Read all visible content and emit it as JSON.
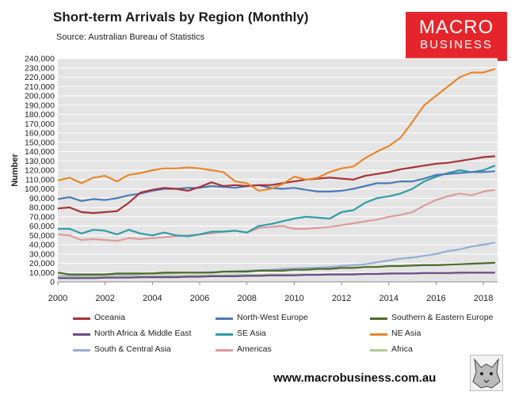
{
  "header": {
    "title": "Short-term Arrivals by Region (Monthly)",
    "subtitle": "Source: Australian Bureau of Statistics"
  },
  "logo": {
    "line1": "MACRO",
    "line2": "BUSINESS"
  },
  "footer": {
    "website": "www.macrobusiness.com.au"
  },
  "colors": {
    "plot_bg": "#e4e4e4",
    "Oceania": "#a83235",
    "North-West Europe": "#4a7ab5",
    "Southern & Eastern Europe": "#4e6b2a",
    "North Africa & Middle East": "#6a4a8a",
    "SE Asia": "#2f9ca8",
    "NE Asia": "#e8862c",
    "South & Central Asia": "#94aed6",
    "Americas": "#dc9c9c",
    "Africa": "#b4cc94"
  },
  "chart_data": {
    "type": "line",
    "title": "Short-term Arrivals by Region (Monthly)",
    "xlabel": "",
    "ylabel": "Number",
    "xlim": [
      2000,
      2018.6
    ],
    "ylim": [
      0,
      240000
    ],
    "yticks": [
      "0",
      "10,000",
      "20,000",
      "30,000",
      "40,000",
      "50,000",
      "60,000",
      "70,000",
      "80,000",
      "90,000",
      "100,000",
      "110,000",
      "120,000",
      "130,000",
      "140,000",
      "150,000",
      "160,000",
      "170,000",
      "180,000",
      "190,000",
      "200,000",
      "210,000",
      "220,000",
      "230,000",
      "240,000"
    ],
    "xticks": [
      "2000",
      "2002",
      "2004",
      "2006",
      "2008",
      "2010",
      "2012",
      "2014",
      "2016",
      "2018"
    ],
    "x": [
      2000,
      2000.5,
      2001,
      2001.5,
      2002,
      2002.5,
      2003,
      2003.5,
      2004,
      2004.5,
      2005,
      2005.5,
      2006,
      2006.5,
      2007,
      2007.5,
      2008,
      2008.5,
      2009,
      2009.5,
      2010,
      2010.5,
      2011,
      2011.5,
      2012,
      2012.5,
      2013,
      2013.5,
      2014,
      2014.5,
      2015,
      2015.5,
      2016,
      2016.5,
      2017,
      2017.5,
      2018,
      2018.5
    ],
    "series": [
      {
        "name": "Oceania",
        "values": [
          79000,
          80000,
          75000,
          74000,
          75000,
          76000,
          85000,
          96000,
          99000,
          101000,
          100000,
          98000,
          102000,
          107000,
          103000,
          104000,
          103000,
          104000,
          104000,
          106000,
          108000,
          110000,
          111000,
          112000,
          111000,
          110000,
          114000,
          116000,
          118000,
          121000,
          123000,
          125000,
          127000,
          128000,
          130000,
          132000,
          134000,
          135000
        ]
      },
      {
        "name": "North-West Europe",
        "values": [
          89000,
          91000,
          87000,
          89000,
          88000,
          90000,
          93000,
          95000,
          98000,
          100000,
          100000,
          101000,
          101000,
          103000,
          102000,
          101000,
          103000,
          104000,
          101000,
          100000,
          101000,
          99000,
          97000,
          97000,
          98000,
          100000,
          103000,
          106000,
          106000,
          108000,
          108000,
          111000,
          115000,
          116000,
          117000,
          118000,
          118000,
          119000
        ]
      },
      {
        "name": "Southern & Eastern Europe",
        "values": [
          10000,
          8000,
          8000,
          8000,
          8000,
          9000,
          9000,
          9000,
          9000,
          10000,
          10000,
          10000,
          10000,
          10000,
          11000,
          11000,
          11000,
          12000,
          12000,
          12000,
          13000,
          13000,
          14000,
          14000,
          15000,
          15000,
          16000,
          16000,
          17000,
          17000,
          17500,
          18000,
          18000,
          18500,
          19000,
          19500,
          20000,
          20500
        ]
      },
      {
        "name": "North Africa & Middle East",
        "values": [
          4000,
          4000,
          4000,
          4000,
          4500,
          4500,
          4500,
          5000,
          5000,
          5000,
          5000,
          5500,
          5500,
          6000,
          6000,
          6000,
          6500,
          6500,
          7000,
          7000,
          7000,
          7500,
          7500,
          8000,
          8000,
          8000,
          8500,
          8500,
          9000,
          9000,
          9000,
          9500,
          9500,
          9500,
          10000,
          10000,
          10000,
          10000
        ]
      },
      {
        "name": "SE Asia",
        "values": [
          57000,
          57000,
          52000,
          56000,
          55000,
          51000,
          56000,
          52000,
          50000,
          53000,
          50000,
          49000,
          51000,
          54000,
          54000,
          55000,
          53000,
          60000,
          62000,
          65000,
          68000,
          70000,
          69000,
          68000,
          75000,
          77000,
          85000,
          90000,
          92000,
          95000,
          100000,
          108000,
          113000,
          117000,
          120000,
          118000,
          120000,
          125000
        ]
      },
      {
        "name": "NE Asia",
        "values": [
          109000,
          112000,
          106000,
          112000,
          114000,
          108000,
          115000,
          117000,
          120000,
          122000,
          122000,
          123000,
          122000,
          120000,
          118000,
          108000,
          106000,
          98000,
          100000,
          105000,
          113000,
          110000,
          112000,
          118000,
          122000,
          124000,
          133000,
          140000,
          146000,
          155000,
          172000,
          190000,
          200000,
          210000,
          220000,
          225000,
          225000,
          229000
        ]
      },
      {
        "name": "South & Central Asia",
        "values": [
          6000,
          6500,
          7000,
          7000,
          7500,
          8000,
          8000,
          8500,
          9000,
          9000,
          9500,
          10000,
          10000,
          10500,
          11000,
          11500,
          12000,
          12500,
          13000,
          14000,
          14500,
          15000,
          15500,
          16000,
          17000,
          18000,
          19000,
          21000,
          23000,
          25000,
          26000,
          28000,
          30000,
          33000,
          35000,
          38000,
          40000,
          42000
        ]
      },
      {
        "name": "Americas",
        "values": [
          51000,
          50000,
          45000,
          46000,
          45000,
          44000,
          47000,
          46000,
          47000,
          48000,
          49000,
          50000,
          51000,
          52000,
          54000,
          55000,
          53000,
          58000,
          59000,
          60000,
          57000,
          57000,
          58000,
          59000,
          61000,
          63000,
          65000,
          67000,
          70000,
          72000,
          75000,
          82000,
          88000,
          92000,
          95000,
          93000,
          97000,
          99000
        ]
      },
      {
        "name": "Africa",
        "values": [
          5000,
          5000,
          5000,
          5500,
          5500,
          5500,
          6000,
          6000,
          6000,
          6500,
          6500,
          6500,
          7000,
          7000,
          7000,
          7500,
          7500,
          7500,
          8000,
          8000,
          8000,
          8000,
          8000,
          8000,
          8000,
          8500,
          8500,
          8500,
          8500,
          9000,
          9000,
          9000,
          9000,
          9000,
          9000,
          9500,
          9500,
          9500
        ]
      }
    ]
  }
}
